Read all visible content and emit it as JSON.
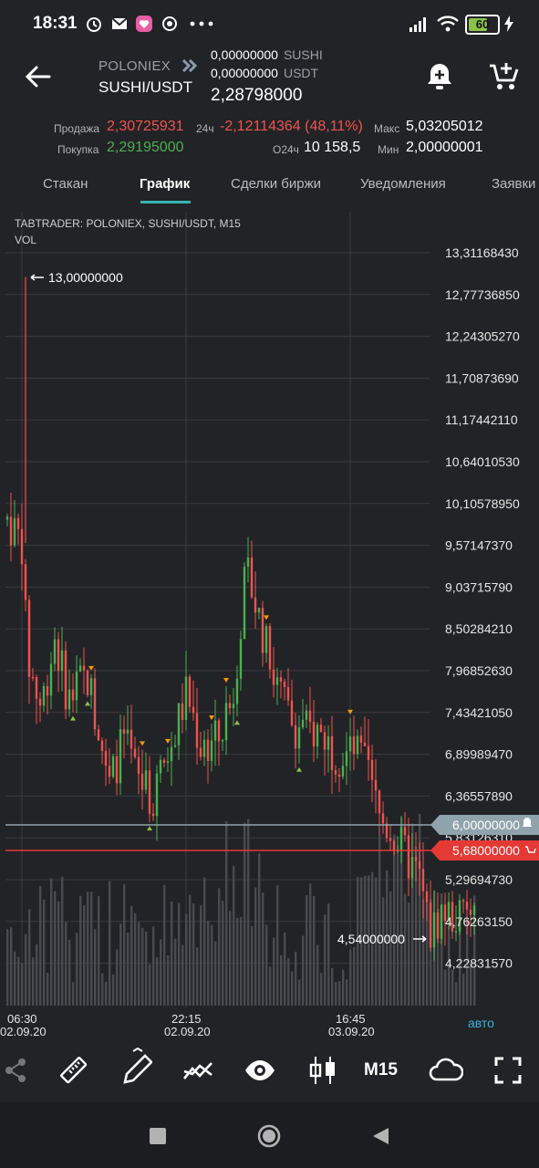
{
  "status_bar": {
    "time": "18:31",
    "battery": "60",
    "icons": [
      "alarm-icon",
      "mail-icon",
      "app-icon",
      "chat-icon",
      "more-icon",
      "signal-icon",
      "wifi-icon",
      "battery-icon",
      "charging-icon"
    ]
  },
  "header": {
    "exchange": "POLONIEX",
    "pair": "SUSHI/USDT",
    "balance_base": {
      "amount": "0,00000000",
      "unit": "SUSHI"
    },
    "balance_quote": {
      "amount": "0,00000000",
      "unit": "USDT"
    },
    "last_price": "2,28798000",
    "icons": [
      "back-arrow-icon",
      "exchange-logo-icon",
      "add-alert-icon",
      "add-to-cart-icon"
    ]
  },
  "stats": {
    "sell_label": "Продажа",
    "sell_value": "2,30725931",
    "buy_label": "Покупка",
    "buy_value": "2,29195000",
    "change_label": "24ч",
    "change_value": "-2,12114364 (48,11%)",
    "volume_label": "О24ч",
    "volume_value": "10 158,5",
    "max_label": "Макс",
    "max_value": "5,03205012",
    "min_label": "Мин",
    "min_value": "2,00000001"
  },
  "tabs": [
    "Стакан",
    "График",
    "Сделки биржи",
    "Уведомления",
    "Заявки"
  ],
  "active_tab": "График",
  "chart": {
    "source_label": "TABTRADER: POLONIEX, SUSHI/USDT, M15",
    "volume_label": "VOL",
    "price_axis": [
      "13,31168430",
      "12,77736850",
      "12,24305270",
      "11,70873690",
      "11,17442110",
      "10,64010530",
      "10,10578950",
      "9,57147370",
      "9,03715790",
      "8,50284210",
      "7,96852630",
      "7,43421050",
      "6,89989470",
      "6,36557890",
      "5,83126310",
      "5,29694730",
      "4,76263150",
      "4,22831570"
    ],
    "high_marker": "13,00000000",
    "low_marker": "4,54000000",
    "alert_line": "6,00000000",
    "order_line": "5,68000000",
    "time_axis": [
      {
        "time": "06:30",
        "date": "02.09.20"
      },
      {
        "time": "22:15",
        "date": "02.09.20"
      },
      {
        "time": "16:45",
        "date": "03.09.20"
      }
    ],
    "auto_label": "авто",
    "colors": {
      "up": "#4caf50",
      "down": "#ef5350",
      "alert": "#8fa3ad",
      "order": "#e53935"
    }
  },
  "toolbar": {
    "icons": [
      "share-icon",
      "ruler-icon",
      "pencil-icon",
      "indicators-icon",
      "eye-icon",
      "candles-icon",
      "cloud-icon",
      "fullscreen-icon"
    ],
    "timeframe": "M15"
  },
  "navbar": {
    "icons": [
      "recents-icon",
      "home-icon",
      "back-icon"
    ]
  }
}
